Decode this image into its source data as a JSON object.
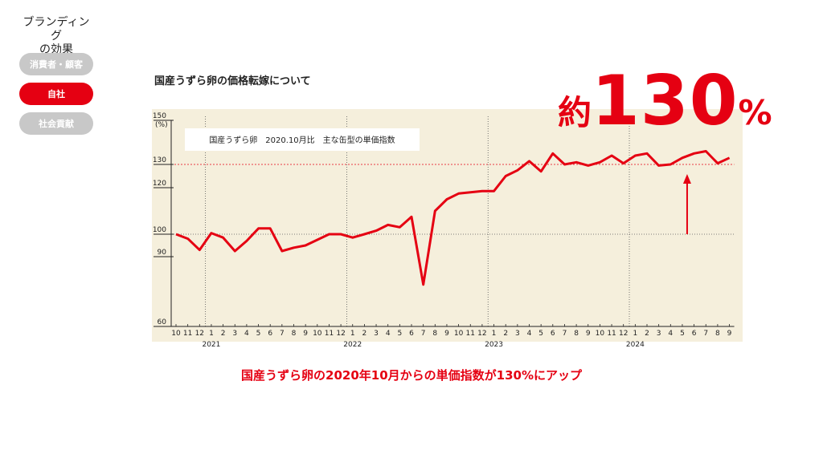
{
  "sidebar": {
    "title": "ブランディング\nの効果",
    "items": [
      {
        "label": "消費者・顧客",
        "active": false
      },
      {
        "label": "自社",
        "active": true
      },
      {
        "label": "社会貢献",
        "active": false
      }
    ]
  },
  "colors": {
    "accent": "#e50012",
    "inactive": "#c8c8c8",
    "plot_bg": "#f5efdc"
  },
  "headline": {
    "prefix": "約",
    "value": "130",
    "unit": "%"
  },
  "subtitle": "国産うずら卵の2020年10月からの単価指数が130%にアップ",
  "chart_data": {
    "type": "line",
    "title": "国産うずら卵の価格転嫁について",
    "legend": "国産うずら卵　2020.10月比　主な缶型の単価指数",
    "yunit": "(%)",
    "ylim": [
      60,
      150
    ],
    "yticks": [
      60,
      90,
      100,
      120,
      130,
      150
    ],
    "reference_lines": [
      100,
      130
    ],
    "x_labels": [
      "10",
      "11",
      "12",
      "1",
      "2",
      "3",
      "4",
      "5",
      "6",
      "7",
      "8",
      "9",
      "10",
      "11",
      "12",
      "1",
      "2",
      "3",
      "4",
      "5",
      "6",
      "7",
      "8",
      "9",
      "10",
      "11",
      "12",
      "1",
      "2",
      "3",
      "4",
      "5",
      "6",
      "7",
      "8",
      "9",
      "10",
      "11",
      "12",
      "1",
      "2",
      "3",
      "4",
      "5",
      "6",
      "7",
      "8",
      "9"
    ],
    "year_labels": [
      {
        "label": "2021",
        "index": 3
      },
      {
        "label": "2022",
        "index": 15
      },
      {
        "label": "2023",
        "index": 27
      },
      {
        "label": "2024",
        "index": 39
      }
    ],
    "series": [
      {
        "values": [
          100,
          98,
          93,
          100.5,
          98.5,
          92.5,
          97,
          102.5,
          102.5,
          92.5,
          94,
          95,
          97.5,
          100,
          100,
          98.5,
          100,
          101.5,
          104,
          103,
          107.5,
          78,
          110,
          115,
          117.5,
          118,
          118.5,
          118.5,
          125,
          127.5,
          131.5,
          127,
          135,
          130,
          131,
          129.5,
          131,
          134,
          130.5,
          134,
          135,
          129.5,
          130,
          133,
          135,
          136,
          130.5,
          133
        ]
      }
    ],
    "annotation_arrow": {
      "index": 43,
      "from": 100,
      "to": 130
    }
  }
}
